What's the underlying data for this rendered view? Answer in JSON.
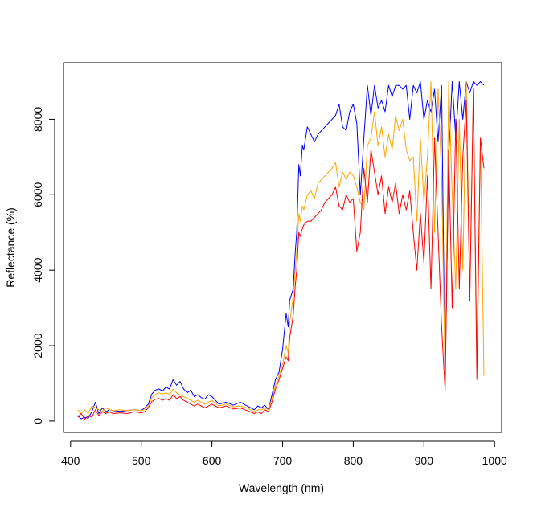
{
  "chart_data": {
    "type": "line",
    "xlabel": "Wavelength (nm)",
    "ylabel": "Reflectance (%)",
    "xlim": [
      390,
      1010
    ],
    "ylim": [
      -300,
      9500
    ],
    "x_ticks": [
      400,
      500,
      600,
      700,
      800,
      900,
      1000
    ],
    "y_ticks": [
      0,
      2000,
      4000,
      6000,
      8000
    ],
    "grid": false,
    "legend": "none",
    "series": [
      {
        "color": "#0000ff",
        "points": [
          [
            410,
            150
          ],
          [
            415,
            60
          ],
          [
            420,
            100
          ],
          [
            425,
            80
          ],
          [
            430,
            250
          ],
          [
            435,
            500
          ],
          [
            440,
            200
          ],
          [
            445,
            350
          ],
          [
            450,
            250
          ],
          [
            455,
            300
          ],
          [
            460,
            280
          ],
          [
            470,
            260
          ],
          [
            480,
            280
          ],
          [
            490,
            300
          ],
          [
            500,
            280
          ],
          [
            505,
            350
          ],
          [
            510,
            450
          ],
          [
            515,
            720
          ],
          [
            520,
            820
          ],
          [
            525,
            850
          ],
          [
            530,
            800
          ],
          [
            535,
            900
          ],
          [
            540,
            850
          ],
          [
            545,
            1100
          ],
          [
            550,
            950
          ],
          [
            555,
            1050
          ],
          [
            560,
            850
          ],
          [
            565,
            750
          ],
          [
            570,
            820
          ],
          [
            575,
            650
          ],
          [
            580,
            700
          ],
          [
            585,
            620
          ],
          [
            590,
            580
          ],
          [
            595,
            700
          ],
          [
            600,
            650
          ],
          [
            610,
            450
          ],
          [
            620,
            500
          ],
          [
            630,
            420
          ],
          [
            640,
            500
          ],
          [
            650,
            400
          ],
          [
            660,
            300
          ],
          [
            665,
            400
          ],
          [
            670,
            350
          ],
          [
            675,
            420
          ],
          [
            680,
            300
          ],
          [
            685,
            700
          ],
          [
            690,
            1100
          ],
          [
            695,
            1300
          ],
          [
            700,
            1900
          ],
          [
            705,
            2850
          ],
          [
            708,
            2500
          ],
          [
            710,
            3200
          ],
          [
            715,
            3500
          ],
          [
            718,
            4500
          ],
          [
            720,
            5000
          ],
          [
            723,
            6800
          ],
          [
            725,
            6500
          ],
          [
            728,
            7300
          ],
          [
            730,
            7200
          ],
          [
            735,
            7800
          ],
          [
            740,
            7600
          ],
          [
            745,
            7400
          ],
          [
            750,
            7600
          ],
          [
            755,
            7700
          ],
          [
            760,
            7800
          ],
          [
            765,
            7900
          ],
          [
            770,
            8000
          ],
          [
            775,
            8100
          ],
          [
            780,
            8400
          ],
          [
            785,
            7800
          ],
          [
            790,
            7700
          ],
          [
            795,
            8200
          ],
          [
            800,
            8400
          ],
          [
            805,
            7900
          ],
          [
            810,
            6000
          ],
          [
            815,
            7500
          ],
          [
            820,
            8900
          ],
          [
            825,
            8100
          ],
          [
            830,
            8900
          ],
          [
            835,
            8300
          ],
          [
            840,
            8500
          ],
          [
            845,
            8200
          ],
          [
            850,
            8900
          ],
          [
            855,
            8600
          ],
          [
            860,
            8900
          ],
          [
            865,
            8900
          ],
          [
            870,
            8800
          ],
          [
            875,
            8900
          ],
          [
            880,
            8000
          ],
          [
            885,
            8900
          ],
          [
            890,
            8700
          ],
          [
            895,
            9000
          ],
          [
            900,
            8000
          ],
          [
            905,
            8500
          ],
          [
            910,
            8200
          ],
          [
            915,
            8800
          ],
          [
            920,
            7400
          ],
          [
            925,
            8900
          ],
          [
            930,
            1000
          ],
          [
            935,
            7000
          ],
          [
            940,
            9000
          ],
          [
            945,
            7500
          ],
          [
            950,
            9000
          ],
          [
            955,
            8000
          ],
          [
            960,
            9000
          ],
          [
            965,
            8700
          ],
          [
            970,
            9000
          ],
          [
            975,
            8900
          ],
          [
            980,
            9000
          ],
          [
            985,
            8900
          ]
        ]
      },
      {
        "color": "#ffa500",
        "points": [
          [
            410,
            300
          ],
          [
            415,
            200
          ],
          [
            420,
            300
          ],
          [
            425,
            200
          ],
          [
            430,
            400
          ],
          [
            435,
            350
          ],
          [
            440,
            300
          ],
          [
            445,
            250
          ],
          [
            450,
            350
          ],
          [
            455,
            300
          ],
          [
            460,
            280
          ],
          [
            470,
            300
          ],
          [
            480,
            280
          ],
          [
            490,
            300
          ],
          [
            500,
            280
          ],
          [
            505,
            300
          ],
          [
            510,
            400
          ],
          [
            515,
            620
          ],
          [
            520,
            700
          ],
          [
            525,
            750
          ],
          [
            530,
            720
          ],
          [
            535,
            750
          ],
          [
            540,
            700
          ],
          [
            545,
            850
          ],
          [
            550,
            750
          ],
          [
            555,
            700
          ],
          [
            560,
            650
          ],
          [
            565,
            600
          ],
          [
            570,
            550
          ],
          [
            575,
            500
          ],
          [
            580,
            550
          ],
          [
            585,
            500
          ],
          [
            590,
            450
          ],
          [
            595,
            500
          ],
          [
            600,
            550
          ],
          [
            610,
            400
          ],
          [
            620,
            450
          ],
          [
            630,
            380
          ],
          [
            640,
            400
          ],
          [
            650,
            350
          ],
          [
            660,
            250
          ],
          [
            665,
            300
          ],
          [
            670,
            300
          ],
          [
            675,
            350
          ],
          [
            680,
            300
          ],
          [
            685,
            600
          ],
          [
            690,
            950
          ],
          [
            695,
            1200
          ],
          [
            700,
            1500
          ],
          [
            705,
            2000
          ],
          [
            708,
            1800
          ],
          [
            710,
            2600
          ],
          [
            715,
            3300
          ],
          [
            718,
            4000
          ],
          [
            720,
            4500
          ],
          [
            723,
            5500
          ],
          [
            725,
            5300
          ],
          [
            728,
            5700
          ],
          [
            730,
            5600
          ],
          [
            735,
            6000
          ],
          [
            740,
            6100
          ],
          [
            745,
            5900
          ],
          [
            750,
            6300
          ],
          [
            755,
            6400
          ],
          [
            760,
            6500
          ],
          [
            765,
            6600
          ],
          [
            770,
            6700
          ],
          [
            775,
            6850
          ],
          [
            780,
            6200
          ],
          [
            785,
            6600
          ],
          [
            790,
            6400
          ],
          [
            795,
            6600
          ],
          [
            800,
            6500
          ],
          [
            805,
            6200
          ],
          [
            810,
            5800
          ],
          [
            815,
            5600
          ],
          [
            820,
            7300
          ],
          [
            825,
            7500
          ],
          [
            830,
            8200
          ],
          [
            835,
            7300
          ],
          [
            840,
            7800
          ],
          [
            845,
            7000
          ],
          [
            850,
            7600
          ],
          [
            855,
            7200
          ],
          [
            860,
            8100
          ],
          [
            865,
            7700
          ],
          [
            870,
            8000
          ],
          [
            875,
            7200
          ],
          [
            880,
            6900
          ],
          [
            885,
            7000
          ],
          [
            890,
            5300
          ],
          [
            895,
            7500
          ],
          [
            900,
            5800
          ],
          [
            905,
            7000
          ],
          [
            910,
            9000
          ],
          [
            915,
            5000
          ],
          [
            920,
            8800
          ],
          [
            925,
            6500
          ],
          [
            930,
            1200
          ],
          [
            935,
            9000
          ],
          [
            940,
            6000
          ],
          [
            945,
            3500
          ],
          [
            950,
            8000
          ],
          [
            955,
            4000
          ],
          [
            960,
            9000
          ],
          [
            965,
            3500
          ],
          [
            970,
            8500
          ],
          [
            975,
            1800
          ],
          [
            980,
            7500
          ],
          [
            985,
            1200
          ]
        ]
      },
      {
        "color": "#ff0000",
        "points": [
          [
            410,
            100
          ],
          [
            415,
            200
          ],
          [
            420,
            50
          ],
          [
            425,
            150
          ],
          [
            430,
            100
          ],
          [
            435,
            300
          ],
          [
            440,
            150
          ],
          [
            445,
            250
          ],
          [
            450,
            200
          ],
          [
            455,
            250
          ],
          [
            460,
            200
          ],
          [
            470,
            220
          ],
          [
            480,
            200
          ],
          [
            490,
            250
          ],
          [
            500,
            220
          ],
          [
            505,
            250
          ],
          [
            510,
            350
          ],
          [
            515,
            520
          ],
          [
            520,
            580
          ],
          [
            525,
            600
          ],
          [
            530,
            550
          ],
          [
            535,
            600
          ],
          [
            540,
            550
          ],
          [
            545,
            700
          ],
          [
            550,
            600
          ],
          [
            555,
            650
          ],
          [
            560,
            550
          ],
          [
            565,
            500
          ],
          [
            570,
            450
          ],
          [
            575,
            400
          ],
          [
            580,
            450
          ],
          [
            585,
            400
          ],
          [
            590,
            350
          ],
          [
            595,
            400
          ],
          [
            600,
            450
          ],
          [
            610,
            350
          ],
          [
            620,
            400
          ],
          [
            630,
            320
          ],
          [
            640,
            350
          ],
          [
            650,
            280
          ],
          [
            660,
            200
          ],
          [
            665,
            250
          ],
          [
            670,
            200
          ],
          [
            675,
            300
          ],
          [
            680,
            250
          ],
          [
            685,
            500
          ],
          [
            690,
            850
          ],
          [
            695,
            1100
          ],
          [
            700,
            1400
          ],
          [
            705,
            1700
          ],
          [
            708,
            1600
          ],
          [
            710,
            2200
          ],
          [
            715,
            2800
          ],
          [
            718,
            3600
          ],
          [
            720,
            4000
          ],
          [
            723,
            5000
          ],
          [
            725,
            4900
          ],
          [
            728,
            5100
          ],
          [
            730,
            5200
          ],
          [
            735,
            5300
          ],
          [
            740,
            5300
          ],
          [
            745,
            5400
          ],
          [
            750,
            5500
          ],
          [
            755,
            5600
          ],
          [
            760,
            5800
          ],
          [
            765,
            5900
          ],
          [
            770,
            6000
          ],
          [
            775,
            6200
          ],
          [
            780,
            5700
          ],
          [
            785,
            5600
          ],
          [
            790,
            6000
          ],
          [
            795,
            5800
          ],
          [
            800,
            5900
          ],
          [
            805,
            4500
          ],
          [
            810,
            5000
          ],
          [
            815,
            6700
          ],
          [
            820,
            5800
          ],
          [
            825,
            7200
          ],
          [
            830,
            6600
          ],
          [
            835,
            6000
          ],
          [
            840,
            6500
          ],
          [
            845,
            5500
          ],
          [
            850,
            6200
          ],
          [
            855,
            5800
          ],
          [
            860,
            6300
          ],
          [
            865,
            5500
          ],
          [
            870,
            6000
          ],
          [
            875,
            5600
          ],
          [
            880,
            6100
          ],
          [
            885,
            5000
          ],
          [
            890,
            4000
          ],
          [
            895,
            5500
          ],
          [
            900,
            4200
          ],
          [
            905,
            6500
          ],
          [
            910,
            3500
          ],
          [
            915,
            7500
          ],
          [
            920,
            5000
          ],
          [
            925,
            2500
          ],
          [
            930,
            800
          ],
          [
            935,
            7200
          ],
          [
            940,
            3000
          ],
          [
            945,
            8000
          ],
          [
            950,
            3500
          ],
          [
            955,
            7000
          ],
          [
            960,
            8500
          ],
          [
            965,
            3200
          ],
          [
            970,
            8800
          ],
          [
            975,
            1100
          ],
          [
            980,
            7500
          ],
          [
            985,
            6700
          ]
        ]
      }
    ]
  }
}
